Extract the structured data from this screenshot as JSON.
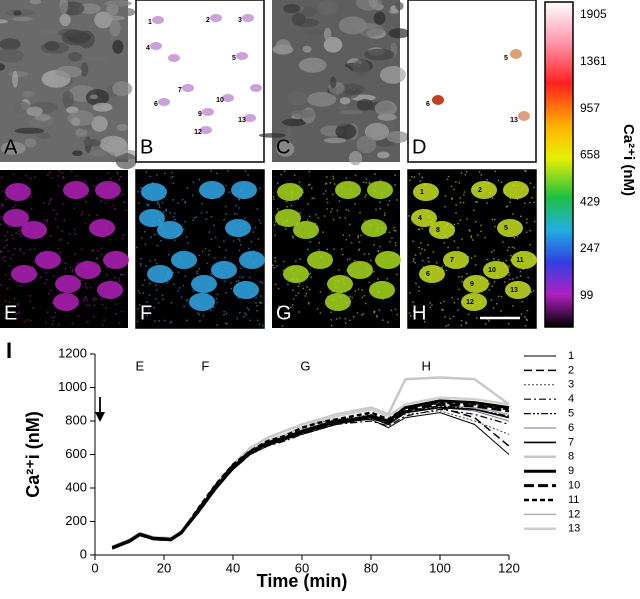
{
  "panel_labels": [
    "A",
    "B",
    "C",
    "D",
    "E",
    "F",
    "G",
    "H"
  ],
  "cell_labels": {
    "B": [
      "1",
      "2",
      "3",
      "4",
      "5",
      "6",
      "7",
      "9",
      "10",
      "12",
      "13"
    ],
    "D": [
      "5",
      "6",
      "13"
    ],
    "H": [
      "1",
      "2",
      "4",
      "5",
      "6",
      "7",
      "8",
      "9",
      "10",
      "11",
      "12",
      "13"
    ]
  },
  "colorbar": {
    "label": "Ca²⁺i (nM)",
    "ticks": [
      1905,
      1361,
      957,
      658,
      429,
      247,
      99
    ]
  },
  "chart_data": {
    "type": "line",
    "panel_label": "I",
    "xlabel": "Time (min)",
    "ylabel": "Ca²⁺i (nM)",
    "xlim": [
      0,
      120
    ],
    "xticks": [
      0,
      20,
      40,
      60,
      80,
      100,
      120
    ],
    "ylim": [
      0,
      1200
    ],
    "yticks": [
      0,
      200,
      400,
      600,
      800,
      1000,
      1200
    ],
    "annotations": [
      {
        "text": "E",
        "x": 13
      },
      {
        "text": "F",
        "x": 32
      },
      {
        "text": "G",
        "x": 61
      },
      {
        "text": "H",
        "x": 96
      }
    ],
    "x": [
      5,
      10,
      13,
      17,
      22,
      25,
      30,
      35,
      40,
      45,
      50,
      55,
      60,
      65,
      70,
      75,
      80,
      85,
      90,
      100,
      110,
      120
    ],
    "series": [
      {
        "name": "1",
        "color": "#000000",
        "width": 1,
        "dash": "",
        "values": [
          35,
          75,
          115,
          90,
          85,
          125,
          250,
          390,
          510,
          600,
          650,
          690,
          720,
          750,
          780,
          800,
          810,
          760,
          820,
          850,
          780,
          600
        ]
      },
      {
        "name": "2",
        "color": "#000000",
        "width": 1.5,
        "dash": "8 4",
        "values": [
          40,
          80,
          125,
          95,
          90,
          140,
          280,
          420,
          540,
          620,
          670,
          700,
          740,
          770,
          800,
          810,
          830,
          790,
          860,
          880,
          820,
          650
        ]
      },
      {
        "name": "3",
        "color": "#444444",
        "width": 1,
        "dash": "2 2",
        "values": [
          45,
          85,
          120,
          100,
          95,
          130,
          260,
          410,
          530,
          610,
          680,
          720,
          760,
          790,
          810,
          820,
          840,
          800,
          840,
          860,
          800,
          720
        ]
      },
      {
        "name": "4",
        "color": "#000000",
        "width": 1.2,
        "dash": "7 3 2 3",
        "values": [
          40,
          80,
          120,
          95,
          90,
          135,
          270,
          400,
          510,
          600,
          650,
          680,
          720,
          750,
          780,
          790,
          800,
          770,
          830,
          870,
          840,
          780
        ]
      },
      {
        "name": "5",
        "color": "#000000",
        "width": 1.2,
        "dash": "7 2 2 2 2 2",
        "values": [
          38,
          78,
          118,
          92,
          88,
          128,
          255,
          395,
          520,
          615,
          665,
          700,
          735,
          765,
          800,
          815,
          830,
          790,
          860,
          890,
          870,
          830
        ]
      },
      {
        "name": "6",
        "color": "#6b7a99",
        "width": 1,
        "dash": "",
        "values": [
          42,
          82,
          122,
          97,
          92,
          130,
          265,
          400,
          525,
          610,
          660,
          690,
          730,
          760,
          790,
          800,
          820,
          785,
          850,
          880,
          860,
          800
        ]
      },
      {
        "name": "7",
        "color": "#000000",
        "width": 1.6,
        "dash": "",
        "values": [
          40,
          80,
          120,
          95,
          90,
          130,
          260,
          400,
          520,
          610,
          660,
          690,
          730,
          760,
          790,
          800,
          820,
          780,
          850,
          880,
          870,
          820
        ]
      },
      {
        "name": "8",
        "color": "#c8c8c8",
        "width": 2.5,
        "dash": "",
        "values": [
          50,
          90,
          130,
          105,
          100,
          140,
          270,
          420,
          540,
          640,
          700,
          740,
          780,
          810,
          840,
          860,
          880,
          840,
          1050,
          1060,
          1050,
          900
        ]
      },
      {
        "name": "9",
        "color": "#000000",
        "width": 3,
        "dash": "",
        "values": [
          45,
          85,
          125,
          100,
          95,
          135,
          265,
          405,
          525,
          615,
          670,
          700,
          740,
          770,
          800,
          810,
          830,
          800,
          880,
          920,
          910,
          880
        ]
      },
      {
        "name": "10",
        "color": "#000000",
        "width": 3,
        "dash": "10 4",
        "values": [
          42,
          82,
          122,
          97,
          92,
          132,
          262,
          402,
          522,
          612,
          662,
          692,
          732,
          762,
          792,
          802,
          822,
          790,
          870,
          900,
          890,
          860
        ]
      },
      {
        "name": "11",
        "color": "#000000",
        "width": 2.5,
        "dash": "5 3",
        "values": [
          40,
          80,
          120,
          95,
          90,
          130,
          280,
          420,
          540,
          620,
          680,
          710,
          760,
          790,
          810,
          830,
          850,
          810,
          880,
          910,
          900,
          870
        ]
      },
      {
        "name": "12",
        "color": "#b0b0b0",
        "width": 1.5,
        "dash": "",
        "values": [
          48,
          88,
          128,
          103,
          98,
          138,
          268,
          408,
          528,
          618,
          668,
          698,
          738,
          768,
          798,
          808,
          828,
          790,
          860,
          890,
          880,
          840
        ]
      },
      {
        "name": "13",
        "color": "#cfcfcf",
        "width": 2.5,
        "dash": "",
        "values": [
          50,
          92,
          132,
          106,
          100,
          142,
          272,
          412,
          532,
          622,
          680,
          720,
          760,
          800,
          830,
          850,
          870,
          830,
          900,
          940,
          930,
          900
        ]
      }
    ]
  }
}
